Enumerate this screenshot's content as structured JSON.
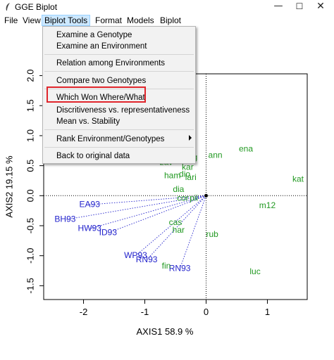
{
  "window": {
    "title": "GGE Biplot",
    "min_glyph": "—",
    "max_glyph": "☐",
    "close_glyph": "✕"
  },
  "menubar": {
    "items": [
      "File",
      "View",
      "Biplot Tools",
      "Format",
      "Models",
      "Biplot"
    ]
  },
  "dropdown": {
    "items": [
      "Examine a Genotype",
      "Examine an Environment",
      "Relation among Environments",
      "Compare two Genotypes",
      "Which Won Where/What",
      "Discritiveness vs. representativeness",
      "Mean vs. Stability",
      "Rank Environment/Genotypes",
      "Back to original data"
    ]
  },
  "colors": {
    "genotype": "#2222cc",
    "environment": "#229922",
    "highlight": "#e0262c"
  },
  "chart_data": {
    "type": "scatter",
    "title": "Biplot",
    "xlabel": "AXIS1 58.9 %",
    "ylabel": "AXIS2 19.15 %",
    "xlim": [
      -2.65,
      1.65
    ],
    "ylim": [
      -1.73,
      2.03
    ],
    "x_ticks": [
      -2,
      -1,
      0,
      1
    ],
    "y_ticks": [
      -1.5,
      -1.0,
      -0.5,
      0.0,
      0.5,
      1.0,
      1.5,
      2.0
    ],
    "origin_lines": "dotted",
    "genotypes": [
      {
        "name": "EA93",
        "x": -1.9,
        "y": -0.15
      },
      {
        "name": "BH93",
        "x": -2.3,
        "y": -0.4
      },
      {
        "name": "HW93",
        "x": -1.9,
        "y": -0.55
      },
      {
        "name": "ID93",
        "x": -1.6,
        "y": -0.62
      },
      {
        "name": "WP93",
        "x": -1.15,
        "y": -1.0
      },
      {
        "name": "RN93",
        "x": -0.97,
        "y": -1.07
      },
      {
        "name": "RN93",
        "x": -0.43,
        "y": -1.22
      }
    ],
    "environments": [
      {
        "name": "ena",
        "x": 0.65,
        "y": 0.77
      },
      {
        "name": "kat",
        "x": 1.5,
        "y": 0.27
      },
      {
        "name": "ann",
        "x": 0.15,
        "y": 0.67
      },
      {
        "name": "m12",
        "x": 1.0,
        "y": -0.17
      },
      {
        "name": "luc",
        "x": 0.8,
        "y": -1.27
      },
      {
        "name": "rub",
        "x": 0.1,
        "y": -0.65
      },
      {
        "name": "zav",
        "x": -0.65,
        "y": 0.55
      },
      {
        "name": "g",
        "x": -0.18,
        "y": 0.63
      },
      {
        "name": "kar",
        "x": -0.3,
        "y": 0.47
      },
      {
        "name": "ham",
        "x": -0.55,
        "y": 0.33
      },
      {
        "name": "dio",
        "x": -0.35,
        "y": 0.35
      },
      {
        "name": "lari",
        "x": -0.25,
        "y": 0.3
      },
      {
        "name": "dia",
        "x": -0.45,
        "y": 0.1
      },
      {
        "name": "cor",
        "x": -0.38,
        "y": -0.05
      },
      {
        "name": "pii",
        "x": -0.2,
        "y": -0.05
      },
      {
        "name": "cas",
        "x": -0.5,
        "y": -0.45
      },
      {
        "name": "har",
        "x": -0.45,
        "y": -0.58
      },
      {
        "name": "fin",
        "x": -0.65,
        "y": -1.18
      }
    ],
    "vectors_to_origin": [
      "EA93",
      "BH93",
      "HW93",
      "ID93",
      "WP93",
      "RN93",
      "RN93"
    ]
  }
}
